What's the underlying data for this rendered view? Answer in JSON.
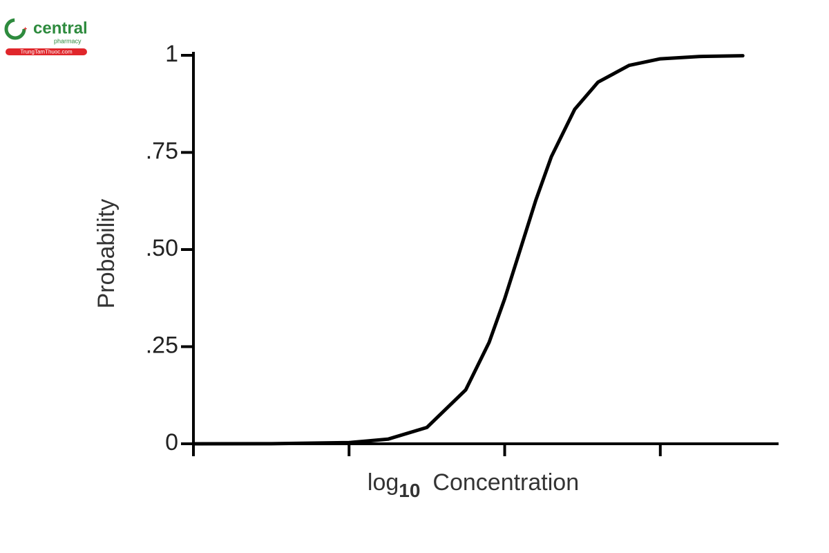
{
  "watermark": {
    "name": "central",
    "sub": "pharmacy",
    "site": "TrungTamThuoc.com"
  },
  "chart_data": {
    "type": "line",
    "ylabel": "Probability",
    "xlabel": {
      "base": "log",
      "subscript": "10",
      "text": "Concentration"
    },
    "x": [
      0,
      0.5,
      1.0,
      1.25,
      1.5,
      1.75,
      1.9,
      2.0,
      2.1,
      2.2,
      2.3,
      2.45,
      2.6,
      2.8,
      3.0,
      3.25,
      3.53
    ],
    "series": [
      {
        "color": "#000000",
        "values": [
          0,
          0.0002,
          0.003,
          0.012,
          0.042,
          0.139,
          0.261,
          0.373,
          0.5,
          0.627,
          0.739,
          0.861,
          0.931,
          0.974,
          0.991,
          0.997,
          0.999
        ]
      }
    ],
    "xlim": [
      0,
      3.76
    ],
    "xticks": [
      0,
      1,
      2,
      3
    ],
    "xtick_labels": false,
    "ylim": [
      0,
      1
    ],
    "yticks": [
      0,
      {
        "value": 0.25,
        "label": ".25"
      },
      {
        "value": 0.5,
        "label": ".50"
      },
      {
        "value": 0.75,
        "label": ".75"
      },
      1
    ],
    "grid": false
  }
}
